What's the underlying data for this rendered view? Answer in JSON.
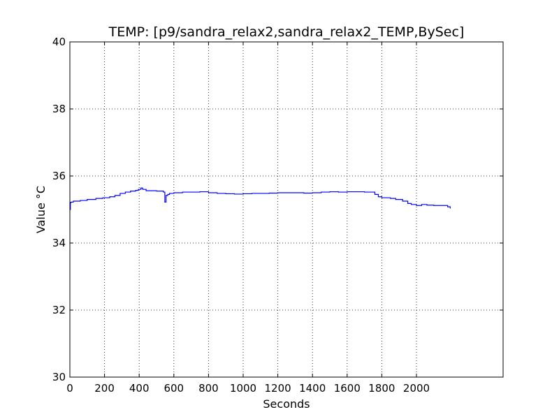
{
  "chart_data": {
    "type": "line",
    "title": "TEMP: [p9/sandra_relax2,sandra_relax2_TEMP,BySec]",
    "xlabel": "Seconds",
    "ylabel": "Value °C",
    "xlim": [
      0,
      2500
    ],
    "ylim": [
      30,
      40
    ],
    "xticks": [
      0,
      200,
      400,
      600,
      800,
      1000,
      1200,
      1400,
      1600,
      1800,
      2000
    ],
    "xtick_labels": [
      "0",
      "200",
      "400",
      "600",
      "800",
      "1000",
      "1200",
      "1400",
      "1600",
      "1800",
      "2000"
    ],
    "yticks": [
      30,
      32,
      34,
      36,
      38,
      40
    ],
    "ytick_labels": [
      "30",
      "32",
      "34",
      "36",
      "38",
      "40"
    ],
    "grid": true,
    "line_style": "step",
    "series": [
      {
        "color": "#0000ff",
        "x": [
          0,
          3,
          6,
          20,
          60,
          100,
          150,
          190,
          230,
          260,
          290,
          320,
          350,
          380,
          395,
          410,
          420,
          440,
          500,
          540,
          548,
          555,
          565,
          575,
          600,
          650,
          700,
          750,
          800,
          850,
          900,
          950,
          1000,
          1050,
          1100,
          1150,
          1200,
          1250,
          1300,
          1350,
          1400,
          1450,
          1500,
          1550,
          1600,
          1650,
          1700,
          1760,
          1780,
          1800,
          1850,
          1880,
          1900,
          1920,
          1950,
          1970,
          2000,
          2030,
          2060,
          2100,
          2150,
          2180,
          2195
        ],
        "y": [
          35.0,
          35.2,
          35.22,
          35.25,
          35.27,
          35.3,
          35.33,
          35.35,
          35.38,
          35.42,
          35.48,
          35.52,
          35.55,
          35.57,
          35.6,
          35.64,
          35.6,
          35.56,
          35.55,
          35.52,
          35.22,
          35.42,
          35.45,
          35.48,
          35.5,
          35.52,
          35.52,
          35.53,
          35.5,
          35.48,
          35.47,
          35.46,
          35.47,
          35.48,
          35.48,
          35.49,
          35.5,
          35.5,
          35.5,
          35.49,
          35.5,
          35.52,
          35.53,
          35.52,
          35.53,
          35.53,
          35.52,
          35.45,
          35.38,
          35.35,
          35.33,
          35.3,
          35.3,
          35.25,
          35.18,
          35.15,
          35.12,
          35.15,
          35.13,
          35.12,
          35.12,
          35.08,
          35.03
        ]
      }
    ]
  }
}
